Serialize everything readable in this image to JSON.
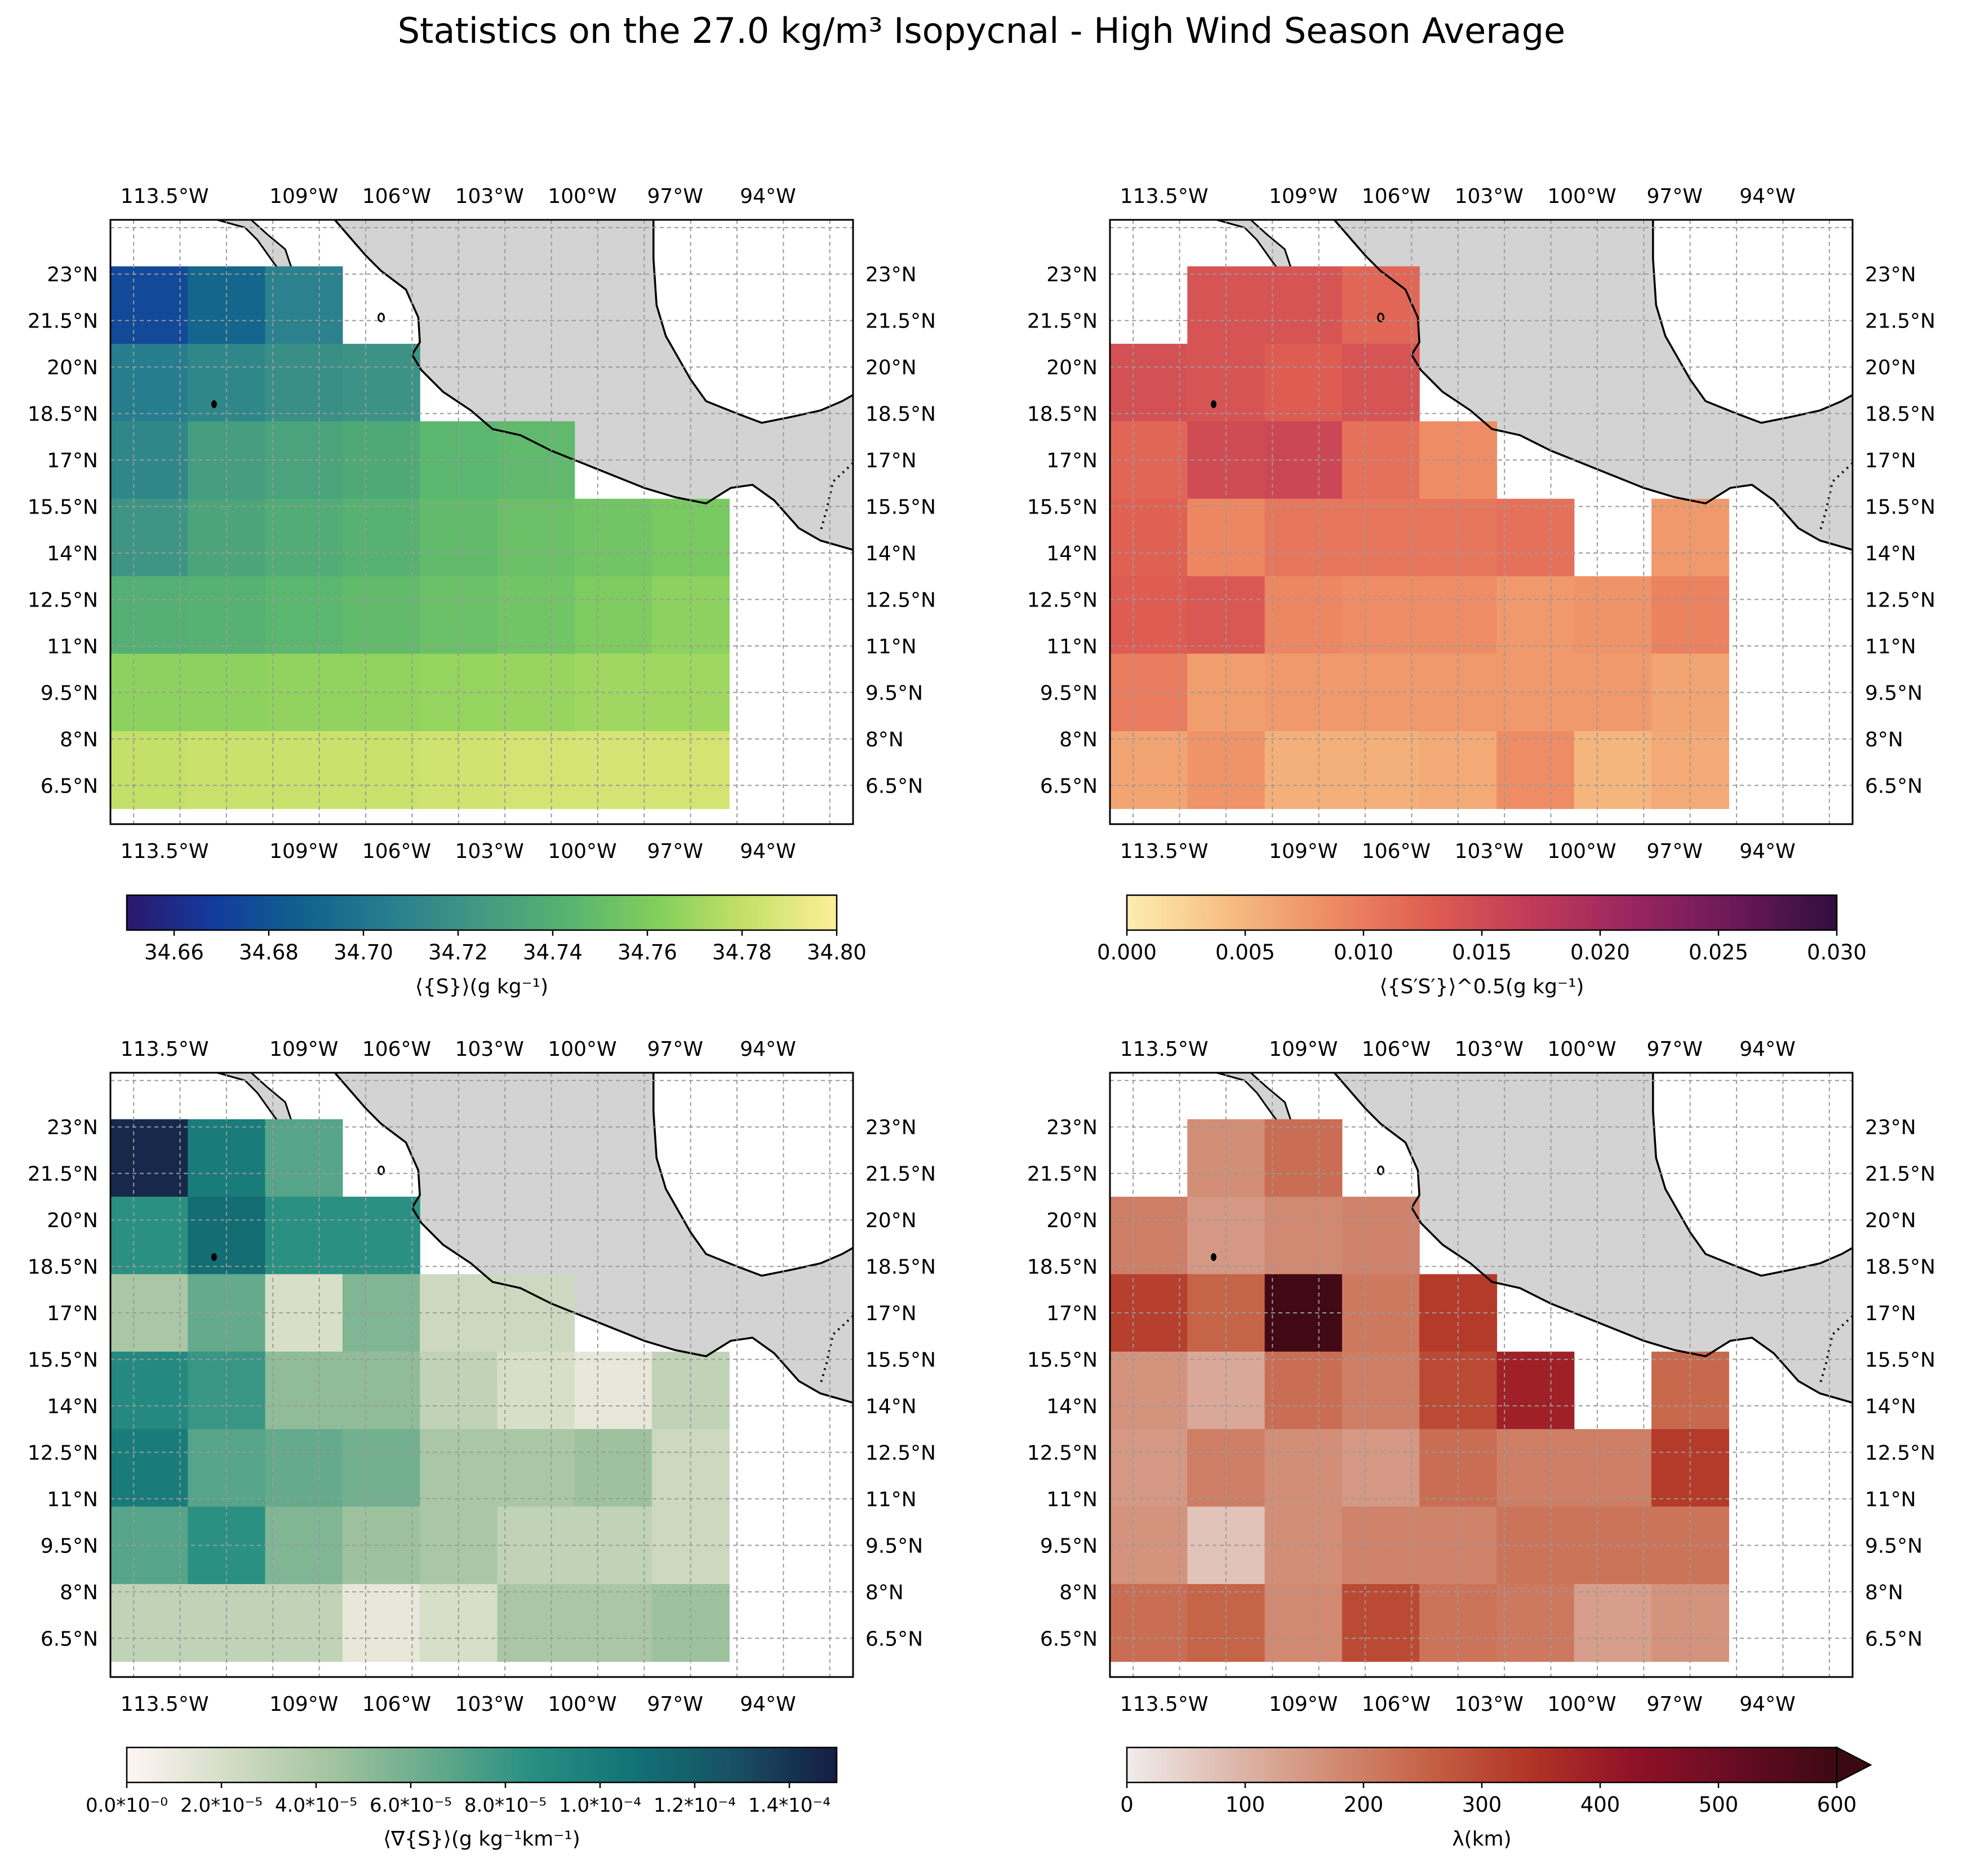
{
  "figure": {
    "title": "Statistics on the 27.0 kg/m³ Isopycnal - High Wind Season Average"
  },
  "map": {
    "lon_ticks": [
      "113.5°W",
      "109°W",
      "106°W",
      "103°W",
      "100°W",
      "97°W",
      "94°W"
    ],
    "lat_ticks": [
      "23°N",
      "21.5°N",
      "20°N",
      "18.5°N",
      "17°N",
      "15.5°N",
      "14°N",
      "12.5°N",
      "11°N",
      "9.5°N",
      "8°N",
      "6.5°N"
    ],
    "land_color": "#d3d3d3",
    "grid": "dashed"
  },
  "chart_data": [
    {
      "type": "heatmap",
      "colorbar_label": "⟨{S}⟩(g kg⁻¹)",
      "colormap": "haline",
      "clim": [
        34.65,
        34.8
      ],
      "colorbar_ticks": [
        "34.66",
        "34.68",
        "34.70",
        "34.72",
        "34.74",
        "34.76",
        "34.78",
        "34.80"
      ],
      "lat_rows": [
        22,
        19.5,
        17,
        14.5,
        12,
        9.5,
        7
      ],
      "lon_cols": [
        -114,
        -111.5,
        -109,
        -106.5,
        -104,
        -101.5,
        -99,
        -96.5
      ],
      "values": [
        [
          34.675,
          34.69,
          34.708,
          null,
          null,
          null,
          null,
          null
        ],
        [
          34.705,
          34.712,
          34.718,
          34.72,
          null,
          null,
          null,
          null
        ],
        [
          34.712,
          34.728,
          34.732,
          34.736,
          34.745,
          34.747,
          null,
          null
        ],
        [
          34.722,
          34.733,
          34.738,
          34.742,
          34.748,
          34.752,
          34.755,
          34.758
        ],
        [
          34.74,
          34.742,
          34.745,
          34.748,
          34.752,
          34.755,
          34.76,
          34.765
        ],
        [
          34.765,
          34.765,
          34.766,
          34.766,
          34.767,
          34.768,
          34.77,
          34.77
        ],
        [
          34.78,
          34.782,
          34.782,
          34.782,
          34.784,
          34.785,
          34.786,
          34.785
        ]
      ]
    },
    {
      "type": "heatmap",
      "colorbar_label": "⟨{S′S′}⟩^0.5(g kg⁻¹)",
      "colormap": "matter",
      "clim": [
        0,
        0.03
      ],
      "colorbar_ticks": [
        "0.000",
        "0.005",
        "0.010",
        "0.015",
        "0.020",
        "0.025",
        "0.030"
      ],
      "lat_rows": [
        22,
        19.5,
        17,
        14.5,
        12,
        9.5,
        7
      ],
      "lon_cols": [
        -114,
        -111.5,
        -109,
        -106.5,
        -104,
        -101.5,
        -99,
        -96.5
      ],
      "values": [
        [
          null,
          0.014,
          0.014,
          0.012,
          null,
          null,
          null,
          null
        ],
        [
          0.0145,
          0.014,
          0.013,
          0.014,
          null,
          null,
          null,
          null
        ],
        [
          0.012,
          0.015,
          0.0155,
          0.011,
          0.0085,
          null,
          null,
          null
        ],
        [
          0.0125,
          0.009,
          0.0105,
          0.0105,
          0.0105,
          0.011,
          null,
          0.0075
        ],
        [
          0.013,
          0.0135,
          0.009,
          0.0085,
          0.0085,
          0.0075,
          0.008,
          0.0095
        ],
        [
          0.01,
          0.007,
          0.0075,
          0.0075,
          0.0075,
          0.0075,
          0.0075,
          0.0065
        ],
        [
          0.0065,
          0.008,
          0.0055,
          0.0055,
          0.006,
          0.0085,
          0.005,
          0.006
        ]
      ]
    },
    {
      "type": "heatmap",
      "colorbar_label": "⟨∇{S}⟩(g kg⁻¹km⁻¹)",
      "colormap": "tempo",
      "clim": [
        0,
        0.00015
      ],
      "colorbar_ticks": [
        "0.0*10⁻⁰",
        "2.0*10⁻⁵",
        "4.0*10⁻⁵",
        "6.0*10⁻⁵",
        "8.0*10⁻⁵",
        "1.0*10⁻⁴",
        "1.2*10⁻⁴",
        "1.4*10⁻⁴"
      ],
      "lat_rows": [
        22,
        19.5,
        17,
        14.5,
        12,
        9.5,
        7
      ],
      "lon_cols": [
        -114,
        -111.5,
        -109,
        -106.5,
        -104,
        -101.5,
        -99,
        -96.5
      ],
      "values": [
        [
          0.000145,
          0.0001,
          7e-05,
          null,
          null,
          null,
          null,
          null
        ],
        [
          8.5e-05,
          0.00011,
          8.5e-05,
          8.5e-05,
          null,
          null,
          null,
          null
        ],
        [
          4e-05,
          6.5e-05,
          2e-05,
          5.5e-05,
          2.5e-05,
          2.5e-05,
          null,
          null
        ],
        [
          9e-05,
          8e-05,
          5e-05,
          5e-05,
          3e-05,
          2e-05,
          1.2e-05,
          3e-05
        ],
        [
          0.0001,
          7e-05,
          6.5e-05,
          6e-05,
          4e-05,
          4e-05,
          4.5e-05,
          2.5e-05
        ],
        [
          7e-05,
          8.5e-05,
          5.5e-05,
          4.5e-05,
          4e-05,
          3e-05,
          3e-05,
          2.5e-05
        ],
        [
          3e-05,
          3e-05,
          3e-05,
          1.2e-05,
          2e-05,
          4e-05,
          4e-05,
          4.5e-05
        ]
      ]
    },
    {
      "type": "heatmap",
      "colorbar_label": "λ(km)",
      "colormap": "amp",
      "clim": [
        0,
        600
      ],
      "colorbar_extend": "max",
      "colorbar_ticks": [
        "0",
        "100",
        "200",
        "300",
        "400",
        "500",
        "600"
      ],
      "lat_rows": [
        22,
        19.5,
        17,
        14.5,
        12,
        9.5,
        7
      ],
      "lon_cols": [
        -114,
        -111.5,
        -109,
        -106.5,
        -104,
        -101.5,
        -99,
        -96.5
      ],
      "values": [
        [
          null,
          170,
          230,
          null,
          null,
          null,
          null,
          null
        ],
        [
          200,
          150,
          180,
          190,
          null,
          null,
          null,
          null
        ],
        [
          320,
          250,
          590,
          210,
          330,
          null,
          null,
          null
        ],
        [
          160,
          120,
          230,
          200,
          300,
          390,
          null,
          240
        ],
        [
          150,
          200,
          170,
          150,
          230,
          200,
          200,
          330
        ],
        [
          160,
          70,
          170,
          190,
          190,
          220,
          220,
          220
        ],
        [
          230,
          250,
          180,
          300,
          220,
          210,
          140,
          160
        ]
      ]
    }
  ]
}
